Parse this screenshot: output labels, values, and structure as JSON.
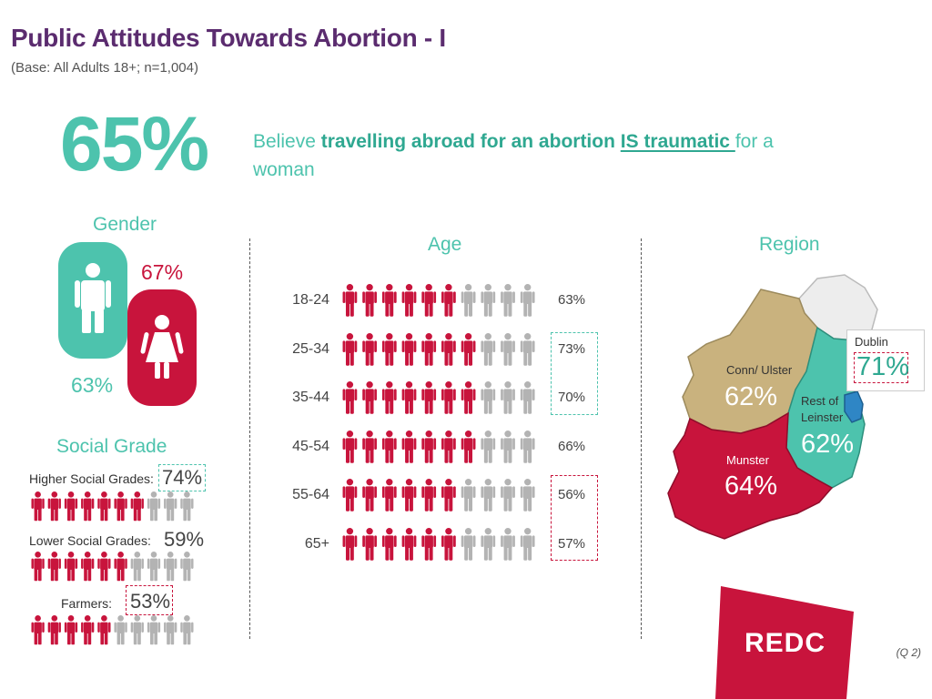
{
  "header": {
    "title": "Public Attitudes Towards Abortion - I",
    "subtitle": "(Base: All Adults 18+; n=1,004)"
  },
  "headline": {
    "percent": "65%",
    "text_pre": "Believe ",
    "text_bold": "travelling abroad for an abortion ",
    "text_underline": "IS traumatic ",
    "text_post": "for a woman"
  },
  "gender": {
    "title": "Gender",
    "male_pct": "63%",
    "female_pct": "67%"
  },
  "social_grade": {
    "title": "Social Grade",
    "rows": [
      {
        "label": "Higher Social Grades:",
        "pct": "74%",
        "value": 74
      },
      {
        "label": "Lower Social Grades:",
        "pct": "59%",
        "value": 59
      },
      {
        "label": "Farmers:",
        "pct": "53%",
        "value": 53
      }
    ]
  },
  "age": {
    "title": "Age",
    "rows": [
      {
        "label": "18-24",
        "pct": "63%",
        "value": 63
      },
      {
        "label": "25-34",
        "pct": "73%",
        "value": 73
      },
      {
        "label": "35-44",
        "pct": "70%",
        "value": 70
      },
      {
        "label": "45-54",
        "pct": "66%",
        "value": 66
      },
      {
        "label": "55-64",
        "pct": "56%",
        "value": 56
      },
      {
        "label": "65+",
        "pct": "57%",
        "value": 57
      }
    ]
  },
  "region": {
    "title": "Region",
    "regions": [
      {
        "name": "Conn/ Ulster",
        "pct": "62%"
      },
      {
        "name": "Rest of Leinster",
        "pct": "62%"
      },
      {
        "name": "Munster",
        "pct": "64%"
      },
      {
        "name": "Dublin",
        "pct": "71%"
      }
    ]
  },
  "chart_data": {
    "type": "bar",
    "headline_value": 65,
    "categories": [
      "Male",
      "Female",
      "Higher Social Grades",
      "Lower Social Grades",
      "Farmers",
      "18-24",
      "25-34",
      "35-44",
      "45-54",
      "55-64",
      "65+",
      "Conn/ Ulster",
      "Rest of Leinster",
      "Munster",
      "Dublin"
    ],
    "values": [
      63,
      67,
      74,
      59,
      53,
      63,
      73,
      70,
      66,
      56,
      57,
      62,
      62,
      64,
      71
    ],
    "ylim": [
      0,
      100
    ]
  },
  "logo": {
    "text": "REDC"
  },
  "footer": {
    "question_ref": "(Q 2)"
  },
  "colors": {
    "title": "#5b2c6f",
    "teal": "#4dc3ad",
    "crimson": "#c8143c",
    "grey": "#b3b3b3",
    "tan": "#c9b27e",
    "dublin_blue": "#2f86c5"
  }
}
